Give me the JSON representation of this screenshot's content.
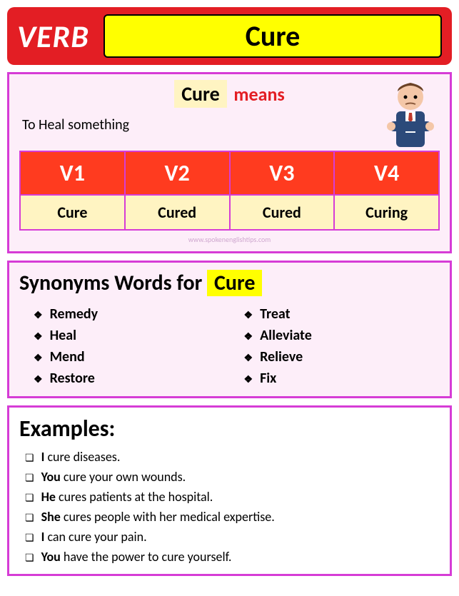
{
  "header": {
    "verb_label": "VERB",
    "word": "Cure"
  },
  "meaning": {
    "word": "Cure",
    "means_label": "means",
    "definition": "To Heal something",
    "watermark": "www.spokenenglishtips.com"
  },
  "forms": {
    "headers": [
      "V1",
      "V2",
      "V3",
      "V4"
    ],
    "values": [
      "Cure",
      "Cured",
      "Cured",
      "Curing"
    ]
  },
  "synonyms": {
    "title_prefix": "Synonyms Words for",
    "title_word": "Cure",
    "col1": [
      "Remedy",
      "Heal",
      "Mend",
      "Restore"
    ],
    "col2": [
      "Treat",
      "Alleviate",
      "Relieve",
      "Fix"
    ]
  },
  "examples": {
    "title": "Examples:",
    "items": [
      {
        "bold": "I",
        "rest": " cure diseases."
      },
      {
        "bold": "You",
        "rest": " cure your own wounds."
      },
      {
        "bold": "He",
        "rest": " cures patients at the hospital."
      },
      {
        "bold": "She",
        "rest": " cures people with her medical expertise."
      },
      {
        "bold": "I",
        "rest": " can cure your pain."
      },
      {
        "bold": "You",
        "rest": " have the power to cure yourself."
      }
    ]
  },
  "colors": {
    "header_bg": "#e31e24",
    "yellow": "#ffff00",
    "panel_border": "#d63cd6",
    "panel_bg": "#fdeef9",
    "form_header_bg": "#ff3b1f",
    "form_cell_bg": "#fff4c2"
  }
}
